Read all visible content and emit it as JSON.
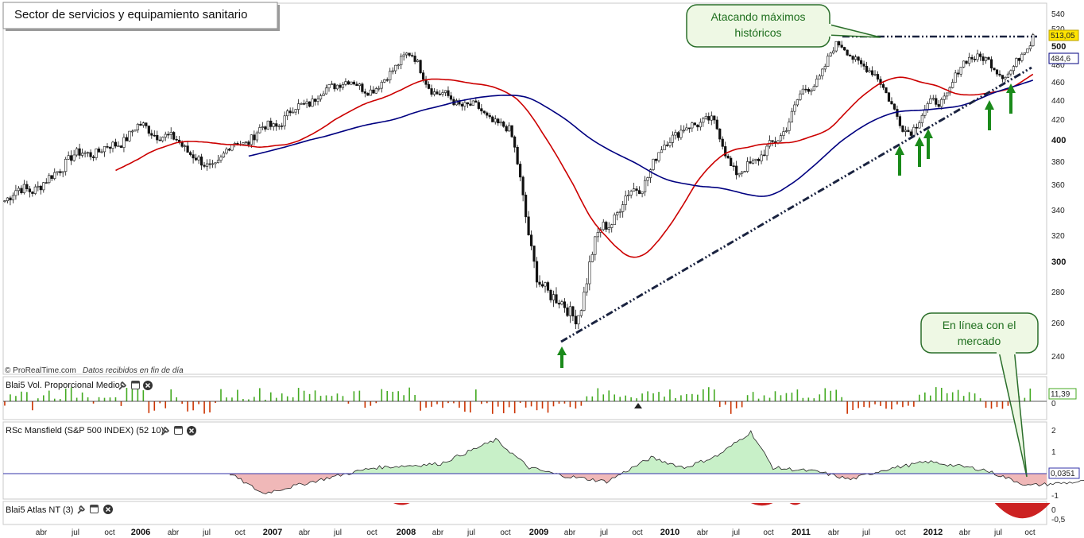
{
  "title": "Sector de servicios y equipamiento sanitario",
  "credit_brand": "© ProRealTime.com",
  "credit_note": "Datos recibidos en fin de día",
  "annotations": {
    "top_1": "Atacando máximos",
    "top_2": "históricos",
    "bottom_1": "En línea con el",
    "bottom_2": "mercado"
  },
  "panels": {
    "vol_label": "Blai5 Vol. Proporcional Medio",
    "rsc_label": "RSc Mansfield (S&P 500 INDEX) (52 10)",
    "atlas_label": "Blai5 Atlas NT (3)"
  },
  "price_axis": {
    "ticks": [
      "540",
      "520",
      "500",
      "480",
      "460",
      "440",
      "420",
      "400",
      "380",
      "360",
      "340",
      "320",
      "300",
      "280",
      "260",
      "240"
    ],
    "badge_last": "513,05",
    "badge_ma": "484,6"
  },
  "vol_axis": {
    "badge": "11,39",
    "zero": "0"
  },
  "rsc_axis": {
    "ticks": [
      "2",
      "1",
      "-1"
    ],
    "badge": "0,0351"
  },
  "atlas_axis": {
    "ticks": [
      "0",
      "-0,5"
    ]
  },
  "time_axis": [
    "abr",
    "jul",
    "oct",
    "2006",
    "abr",
    "jul",
    "oct",
    "2007",
    "abr",
    "jul",
    "oct",
    "2008",
    "abr",
    "jul",
    "oct",
    "2009",
    "abr",
    "jul",
    "oct",
    "2010",
    "abr",
    "jul",
    "oct",
    "2011",
    "abr",
    "jul",
    "oct",
    "2012",
    "abr",
    "jul",
    "oct"
  ],
  "colors": {
    "red_ma": "#cc0000",
    "blue_ma": "#000080",
    "arrow": "#1a8a1a",
    "vol_up": "#44aa22",
    "vol_down": "#cc3300",
    "rsc_pos": "#c8f0c8",
    "rsc_neg": "#f0b8b8",
    "atlas": "#cc2222",
    "callout_fill": "#eef8e4",
    "callout_border": "#2a6e2a"
  },
  "chart_data": {
    "type": "candlestick",
    "title": "Sector de servicios y equipamiento sanitario",
    "ylim": [
      235,
      545
    ],
    "approx_close": {
      "x": [
        "2005-04",
        "2005-07",
        "2005-10",
        "2006-01",
        "2006-04",
        "2006-07",
        "2006-10",
        "2007-01",
        "2007-04",
        "2007-07",
        "2007-10",
        "2008-01",
        "2008-04",
        "2008-07",
        "2008-10",
        "2009-01",
        "2009-04",
        "2009-07",
        "2009-10",
        "2010-01",
        "2010-04",
        "2010-07",
        "2010-10",
        "2011-01",
        "2011-04",
        "2011-07",
        "2011-10",
        "2012-01",
        "2012-04",
        "2012-07",
        "2012-10"
      ],
      "values": [
        360,
        385,
        392,
        412,
        400,
        375,
        398,
        415,
        438,
        460,
        452,
        490,
        445,
        432,
        410,
        285,
        265,
        330,
        360,
        405,
        420,
        370,
        395,
        450,
        500,
        470,
        410,
        440,
        490,
        470,
        513
      ]
    },
    "last_close": 513.05,
    "moving_average_last": 484.6,
    "indicators": [
      {
        "name": "Blai5 Vol. Proporcional Medio",
        "last": 11.39
      },
      {
        "name": "RSc Mansfield (S&P 500 INDEX) (52 10)",
        "last": 0.0351,
        "ticks": [
          2,
          1,
          -1
        ]
      },
      {
        "name": "Blai5 Atlas NT (3)",
        "ticks": [
          0,
          -0.5
        ]
      }
    ]
  }
}
